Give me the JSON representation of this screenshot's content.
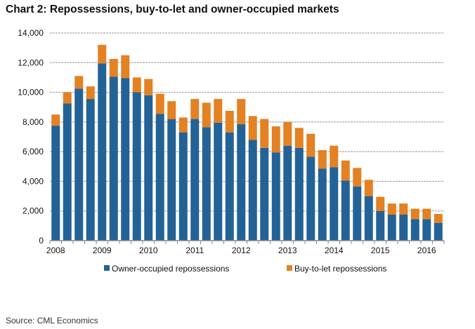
{
  "chart_data": {
    "type": "bar",
    "stacked": true,
    "title": "Chart 2: Repossessions, buy-to-let and owner-occupied markets",
    "xlabel": "",
    "ylabel": "",
    "ylim": [
      0,
      14000
    ],
    "yticks": [
      "0",
      "2,000",
      "4,000",
      "6,000",
      "8,000",
      "10,000",
      "12,000",
      "14,000"
    ],
    "xtick_labels": [
      "2008",
      "2009",
      "2010",
      "2011",
      "2012",
      "2013",
      "2014",
      "2015",
      "2016"
    ],
    "categories": [
      "2008 Q1",
      "2008 Q2",
      "2008 Q3",
      "2008 Q4",
      "2009 Q1",
      "2009 Q2",
      "2009 Q3",
      "2009 Q4",
      "2010 Q1",
      "2010 Q2",
      "2010 Q3",
      "2010 Q4",
      "2011 Q1",
      "2011 Q2",
      "2011 Q3",
      "2011 Q4",
      "2012 Q1",
      "2012 Q2",
      "2012 Q3",
      "2012 Q4",
      "2013 Q1",
      "2013 Q2",
      "2013 Q3",
      "2013 Q4",
      "2014 Q1",
      "2014 Q2",
      "2014 Q3",
      "2014 Q4",
      "2015 Q1",
      "2015 Q2",
      "2015 Q3",
      "2015 Q4",
      "2016 Q1",
      "2016 Q2"
    ],
    "grid": true,
    "legend_position": "bottom",
    "series": [
      {
        "name": "Owner-occupied repossessions",
        "color": "#236296",
        "values": [
          7750,
          9250,
          10250,
          9550,
          11950,
          11050,
          10950,
          10000,
          9800,
          8550,
          8200,
          7300,
          8200,
          7650,
          7950,
          7300,
          7850,
          6800,
          6250,
          5950,
          6400,
          6250,
          5650,
          4850,
          4950,
          4050,
          3650,
          3000,
          2000,
          1750,
          1750,
          1450,
          1450,
          1200
        ]
      },
      {
        "name": "Buy-to-let repossessions",
        "color": "#e38123",
        "values": [
          750,
          750,
          850,
          850,
          1250,
          1200,
          1550,
          1000,
          1100,
          1350,
          1200,
          1000,
          1350,
          1650,
          1600,
          1450,
          1700,
          1600,
          1950,
          1750,
          1600,
          1350,
          1550,
          1250,
          1450,
          1350,
          1250,
          1100,
          950,
          750,
          750,
          700,
          700,
          600
        ]
      }
    ]
  },
  "source": "Source: CML Economics"
}
